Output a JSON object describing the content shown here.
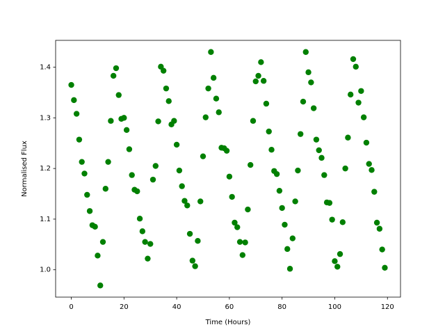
{
  "chart_data": {
    "type": "scatter",
    "xlabel": "Time (Hours)",
    "ylabel": "Normalised Flux",
    "color": "#008000",
    "x": [
      0,
      1,
      2,
      3,
      4,
      5,
      6,
      7,
      8,
      9,
      10,
      11,
      12,
      13,
      14,
      15,
      16,
      17,
      18,
      19,
      20,
      21,
      22,
      23,
      24,
      25,
      26,
      27,
      28,
      29,
      30,
      31,
      32,
      33,
      34,
      35,
      36,
      37,
      38,
      39,
      40,
      41,
      42,
      43,
      44,
      45,
      46,
      47,
      48,
      49,
      50,
      51,
      52,
      53,
      54,
      55,
      56,
      57,
      58,
      59,
      60,
      61,
      62,
      63,
      64,
      65,
      66,
      67,
      68,
      69,
      70,
      71,
      72,
      73,
      74,
      75,
      76,
      77,
      78,
      79,
      80,
      81,
      82,
      83,
      84,
      85,
      86,
      87,
      88,
      89,
      90,
      91,
      92,
      93,
      94,
      95,
      96,
      97,
      98,
      99,
      100,
      101,
      102,
      103,
      104,
      105,
      106,
      107,
      108,
      109,
      110,
      111,
      112,
      113,
      114,
      115,
      116,
      117,
      118,
      119
    ],
    "values": [
      1.365,
      1.335,
      1.308,
      1.257,
      1.213,
      1.19,
      1.148,
      1.116,
      1.088,
      1.085,
      1.028,
      0.969,
      1.055,
      1.16,
      1.213,
      1.294,
      1.383,
      1.398,
      1.345,
      1.298,
      1.3,
      1.276,
      1.238,
      1.187,
      1.158,
      1.155,
      1.101,
      1.076,
      1.055,
      1.022,
      1.051,
      1.178,
      1.205,
      1.293,
      1.401,
      1.393,
      1.358,
      1.333,
      1.287,
      1.294,
      1.247,
      1.196,
      1.165,
      1.136,
      1.127,
      1.071,
      1.018,
      1.007,
      1.057,
      1.135,
      1.224,
      1.301,
      1.358,
      1.43,
      1.379,
      1.338,
      1.311,
      1.241,
      1.24,
      1.235,
      1.184,
      1.144,
      1.093,
      1.084,
      1.055,
      1.029,
      1.054,
      1.119,
      1.207,
      1.294,
      1.372,
      1.383,
      1.41,
      1.373,
      1.328,
      1.273,
      1.237,
      1.195,
      1.189,
      1.156,
      1.122,
      1.089,
      1.041,
      1.002,
      1.062,
      1.135,
      1.196,
      1.268,
      1.332,
      1.43,
      1.39,
      1.37,
      1.319,
      1.257,
      1.236,
      1.221,
      1.187,
      1.133,
      1.132,
      1.099,
      1.017,
      1.006,
      1.031,
      1.094,
      1.2,
      1.261,
      1.346,
      1.416,
      1.401,
      1.33,
      1.353,
      1.301,
      1.251,
      1.209,
      1.197,
      1.154,
      1.093,
      1.081,
      1.04,
      1.004
    ],
    "xlim": [
      -5.95,
      124.95
    ],
    "ylim": [
      0.946,
      1.453
    ],
    "xticks": [
      0,
      20,
      40,
      60,
      80,
      100,
      120
    ],
    "yticks": [
      {
        "value": 1,
        "label": "1.0"
      },
      1.1,
      1.2,
      1.3,
      1.4
    ]
  }
}
